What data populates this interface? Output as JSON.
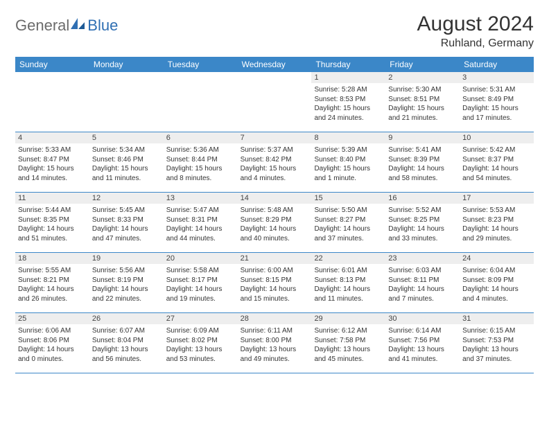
{
  "logo": {
    "part1": "General",
    "part2": "Blue"
  },
  "title": "August 2024",
  "subtitle": "Ruhland, Germany",
  "colors": {
    "header_bar": "#3b87c8",
    "daynum_bg": "#eeeeee",
    "text": "#333333",
    "logo_gray": "#6b6b6b",
    "logo_blue": "#2f6fb3",
    "background": "#ffffff"
  },
  "typography": {
    "title_fontsize": 30,
    "subtitle_fontsize": 16,
    "dow_fontsize": 12,
    "body_fontsize": 10
  },
  "dow": [
    "Sunday",
    "Monday",
    "Tuesday",
    "Wednesday",
    "Thursday",
    "Friday",
    "Saturday"
  ],
  "weeks": [
    [
      {
        "n": "",
        "sr": "",
        "ss": "",
        "dl": ""
      },
      {
        "n": "",
        "sr": "",
        "ss": "",
        "dl": ""
      },
      {
        "n": "",
        "sr": "",
        "ss": "",
        "dl": ""
      },
      {
        "n": "",
        "sr": "",
        "ss": "",
        "dl": ""
      },
      {
        "n": "1",
        "sr": "Sunrise: 5:28 AM",
        "ss": "Sunset: 8:53 PM",
        "dl": "Daylight: 15 hours and 24 minutes."
      },
      {
        "n": "2",
        "sr": "Sunrise: 5:30 AM",
        "ss": "Sunset: 8:51 PM",
        "dl": "Daylight: 15 hours and 21 minutes."
      },
      {
        "n": "3",
        "sr": "Sunrise: 5:31 AM",
        "ss": "Sunset: 8:49 PM",
        "dl": "Daylight: 15 hours and 17 minutes."
      }
    ],
    [
      {
        "n": "4",
        "sr": "Sunrise: 5:33 AM",
        "ss": "Sunset: 8:47 PM",
        "dl": "Daylight: 15 hours and 14 minutes."
      },
      {
        "n": "5",
        "sr": "Sunrise: 5:34 AM",
        "ss": "Sunset: 8:46 PM",
        "dl": "Daylight: 15 hours and 11 minutes."
      },
      {
        "n": "6",
        "sr": "Sunrise: 5:36 AM",
        "ss": "Sunset: 8:44 PM",
        "dl": "Daylight: 15 hours and 8 minutes."
      },
      {
        "n": "7",
        "sr": "Sunrise: 5:37 AM",
        "ss": "Sunset: 8:42 PM",
        "dl": "Daylight: 15 hours and 4 minutes."
      },
      {
        "n": "8",
        "sr": "Sunrise: 5:39 AM",
        "ss": "Sunset: 8:40 PM",
        "dl": "Daylight: 15 hours and 1 minute."
      },
      {
        "n": "9",
        "sr": "Sunrise: 5:41 AM",
        "ss": "Sunset: 8:39 PM",
        "dl": "Daylight: 14 hours and 58 minutes."
      },
      {
        "n": "10",
        "sr": "Sunrise: 5:42 AM",
        "ss": "Sunset: 8:37 PM",
        "dl": "Daylight: 14 hours and 54 minutes."
      }
    ],
    [
      {
        "n": "11",
        "sr": "Sunrise: 5:44 AM",
        "ss": "Sunset: 8:35 PM",
        "dl": "Daylight: 14 hours and 51 minutes."
      },
      {
        "n": "12",
        "sr": "Sunrise: 5:45 AM",
        "ss": "Sunset: 8:33 PM",
        "dl": "Daylight: 14 hours and 47 minutes."
      },
      {
        "n": "13",
        "sr": "Sunrise: 5:47 AM",
        "ss": "Sunset: 8:31 PM",
        "dl": "Daylight: 14 hours and 44 minutes."
      },
      {
        "n": "14",
        "sr": "Sunrise: 5:48 AM",
        "ss": "Sunset: 8:29 PM",
        "dl": "Daylight: 14 hours and 40 minutes."
      },
      {
        "n": "15",
        "sr": "Sunrise: 5:50 AM",
        "ss": "Sunset: 8:27 PM",
        "dl": "Daylight: 14 hours and 37 minutes."
      },
      {
        "n": "16",
        "sr": "Sunrise: 5:52 AM",
        "ss": "Sunset: 8:25 PM",
        "dl": "Daylight: 14 hours and 33 minutes."
      },
      {
        "n": "17",
        "sr": "Sunrise: 5:53 AM",
        "ss": "Sunset: 8:23 PM",
        "dl": "Daylight: 14 hours and 29 minutes."
      }
    ],
    [
      {
        "n": "18",
        "sr": "Sunrise: 5:55 AM",
        "ss": "Sunset: 8:21 PM",
        "dl": "Daylight: 14 hours and 26 minutes."
      },
      {
        "n": "19",
        "sr": "Sunrise: 5:56 AM",
        "ss": "Sunset: 8:19 PM",
        "dl": "Daylight: 14 hours and 22 minutes."
      },
      {
        "n": "20",
        "sr": "Sunrise: 5:58 AM",
        "ss": "Sunset: 8:17 PM",
        "dl": "Daylight: 14 hours and 19 minutes."
      },
      {
        "n": "21",
        "sr": "Sunrise: 6:00 AM",
        "ss": "Sunset: 8:15 PM",
        "dl": "Daylight: 14 hours and 15 minutes."
      },
      {
        "n": "22",
        "sr": "Sunrise: 6:01 AM",
        "ss": "Sunset: 8:13 PM",
        "dl": "Daylight: 14 hours and 11 minutes."
      },
      {
        "n": "23",
        "sr": "Sunrise: 6:03 AM",
        "ss": "Sunset: 8:11 PM",
        "dl": "Daylight: 14 hours and 7 minutes."
      },
      {
        "n": "24",
        "sr": "Sunrise: 6:04 AM",
        "ss": "Sunset: 8:09 PM",
        "dl": "Daylight: 14 hours and 4 minutes."
      }
    ],
    [
      {
        "n": "25",
        "sr": "Sunrise: 6:06 AM",
        "ss": "Sunset: 8:06 PM",
        "dl": "Daylight: 14 hours and 0 minutes."
      },
      {
        "n": "26",
        "sr": "Sunrise: 6:07 AM",
        "ss": "Sunset: 8:04 PM",
        "dl": "Daylight: 13 hours and 56 minutes."
      },
      {
        "n": "27",
        "sr": "Sunrise: 6:09 AM",
        "ss": "Sunset: 8:02 PM",
        "dl": "Daylight: 13 hours and 53 minutes."
      },
      {
        "n": "28",
        "sr": "Sunrise: 6:11 AM",
        "ss": "Sunset: 8:00 PM",
        "dl": "Daylight: 13 hours and 49 minutes."
      },
      {
        "n": "29",
        "sr": "Sunrise: 6:12 AM",
        "ss": "Sunset: 7:58 PM",
        "dl": "Daylight: 13 hours and 45 minutes."
      },
      {
        "n": "30",
        "sr": "Sunrise: 6:14 AM",
        "ss": "Sunset: 7:56 PM",
        "dl": "Daylight: 13 hours and 41 minutes."
      },
      {
        "n": "31",
        "sr": "Sunrise: 6:15 AM",
        "ss": "Sunset: 7:53 PM",
        "dl": "Daylight: 13 hours and 37 minutes."
      }
    ]
  ]
}
